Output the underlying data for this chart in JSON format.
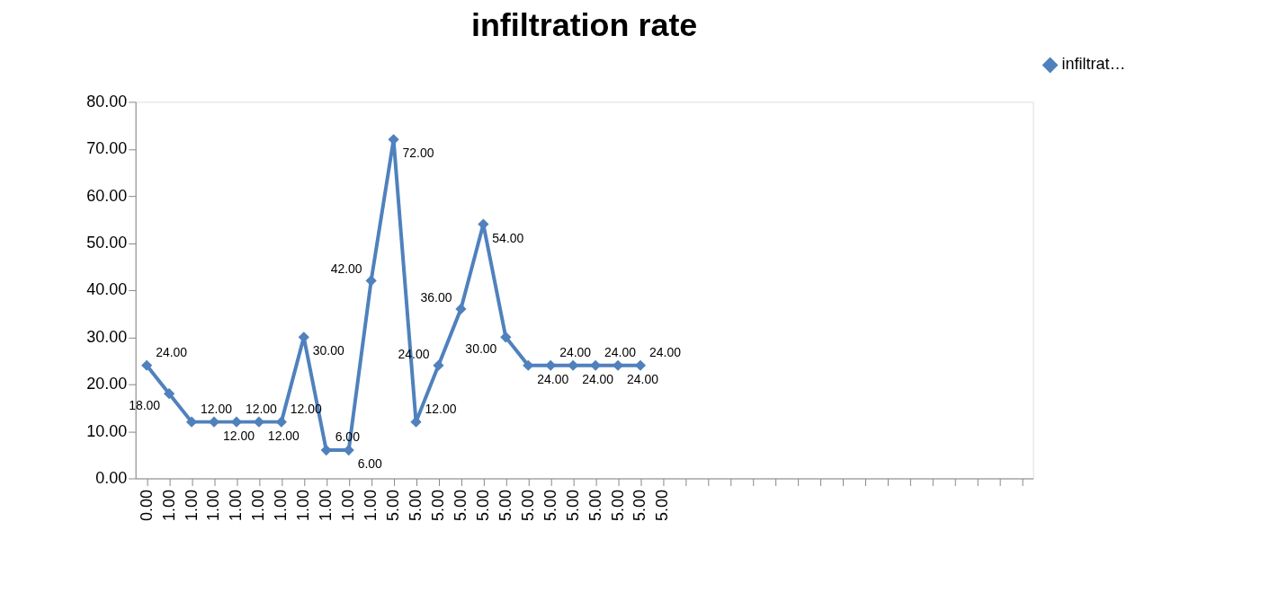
{
  "chart_data": {
    "type": "line",
    "title": "infiltration rate",
    "categories": [
      "0.00",
      "1.00",
      "1.00",
      "1.00",
      "1.00",
      "1.00",
      "1.00",
      "1.00",
      "1.00",
      "1.00",
      "1.00",
      "5.00",
      "5.00",
      "5.00",
      "5.00",
      "5.00",
      "5.00",
      "5.00",
      "5.00",
      "5.00",
      "5.00",
      "5.00",
      "5.00",
      "5.00",
      null,
      null,
      null,
      null,
      null,
      null,
      null,
      null,
      null,
      null,
      null,
      null,
      null,
      null,
      null,
      null
    ],
    "series": [
      {
        "name": "infiltrat…",
        "color": "#4f81bd",
        "values": [
          24,
          18,
          12,
          12,
          12,
          12,
          12,
          30,
          6,
          6,
          42,
          72,
          12,
          24,
          36,
          54,
          30,
          24,
          24,
          24,
          24,
          24,
          24,
          null,
          null,
          null,
          null,
          null,
          null,
          null,
          null,
          null,
          null,
          null,
          null,
          null,
          null,
          null,
          null,
          null
        ],
        "value_labels": [
          "24.00",
          "18.00",
          "12.00",
          "12.00",
          "12.00",
          "12.00",
          "12.00",
          "30.00",
          "6.00",
          "6.00",
          "42.00",
          "72.00",
          "12.00",
          "24.00",
          "36.00",
          "54.00",
          "30.00",
          "24.00",
          "24.00",
          "24.00",
          "24.00",
          "24.00",
          "24.00",
          null,
          null,
          null,
          null,
          null,
          null,
          null,
          null,
          null,
          null,
          null,
          null,
          null,
          null,
          null,
          null,
          null
        ]
      }
    ],
    "ylim": [
      0,
      80
    ],
    "yticks": [
      {
        "value": 0,
        "label": "0.00"
      },
      {
        "value": 10,
        "label": "10.00"
      },
      {
        "value": 20,
        "label": "20.00"
      },
      {
        "value": 30,
        "label": "30.00"
      },
      {
        "value": 40,
        "label": "40.00"
      },
      {
        "value": 50,
        "label": "50.00"
      },
      {
        "value": 60,
        "label": "60.00"
      },
      {
        "value": 70,
        "label": "70.00"
      },
      {
        "value": 80,
        "label": "80.00"
      }
    ],
    "grid": false,
    "legend": "top right",
    "marker": "diamond",
    "line_style": "solid"
  }
}
